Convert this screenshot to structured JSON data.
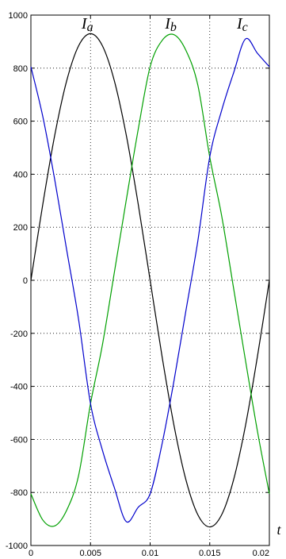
{
  "chart_data": {
    "type": "line",
    "title": "",
    "xlabel": "t",
    "ylabel": "",
    "xlim": [
      0,
      0.02
    ],
    "ylim": [
      -1000,
      1000
    ],
    "grid": true,
    "xticks": [
      {
        "value": 0,
        "label": "0"
      },
      {
        "value": 0.005,
        "label": "0.005"
      },
      {
        "value": 0.01,
        "label": "0.01"
      },
      {
        "value": 0.015,
        "label": "0.015"
      },
      {
        "value": 0.02,
        "label": "0.02"
      }
    ],
    "yticks": [
      {
        "value": 1000,
        "label": "1000"
      },
      {
        "value": 800,
        "label": "800"
      },
      {
        "value": 600,
        "label": "600"
      },
      {
        "value": 400,
        "label": "400"
      },
      {
        "value": 200,
        "label": "200"
      },
      {
        "value": 0,
        "label": "0"
      },
      {
        "value": -200,
        "label": "-200"
      },
      {
        "value": -400,
        "label": "-400"
      },
      {
        "value": -600,
        "label": "-600"
      },
      {
        "value": -800,
        "label": "-800"
      },
      {
        "value": -1000,
        "label": "-1000"
      }
    ],
    "x": [
      0,
      0.001,
      0.002,
      0.003,
      0.004,
      0.005,
      0.006,
      0.007,
      0.008,
      0.009,
      0.01,
      0.011,
      0.012,
      0.013,
      0.014,
      0.015,
      0.016,
      0.017,
      0.018,
      0.019,
      0.02
    ],
    "series": [
      {
        "name": "Ia",
        "label_main": "I",
        "label_sub": "a",
        "color": "#000000",
        "values": [
          0,
          287,
          547,
          752,
          884,
          930,
          884,
          752,
          547,
          287,
          0,
          -287,
          -547,
          -752,
          -884,
          -930,
          -884,
          -752,
          -547,
          -287,
          0
        ]
      },
      {
        "name": "Ib",
        "label_main": "I",
        "label_sub": "b",
        "color": "#00a000",
        "values": [
          -805,
          -904,
          -926,
          -867,
          -736,
          -465,
          -243,
          30,
          303,
          569,
          805,
          904,
          926,
          867,
          736,
          465,
          243,
          -30,
          -303,
          -569,
          -805
        ]
      },
      {
        "name": "Ic",
        "label_main": "I",
        "label_sub": "c",
        "color": "#0000cc",
        "values": [
          805,
          617,
          379,
          115,
          -148,
          -465,
          -641,
          -782,
          -910,
          -856,
          -805,
          -617,
          -379,
          -115,
          148,
          465,
          641,
          782,
          910,
          856,
          805
        ]
      }
    ]
  }
}
